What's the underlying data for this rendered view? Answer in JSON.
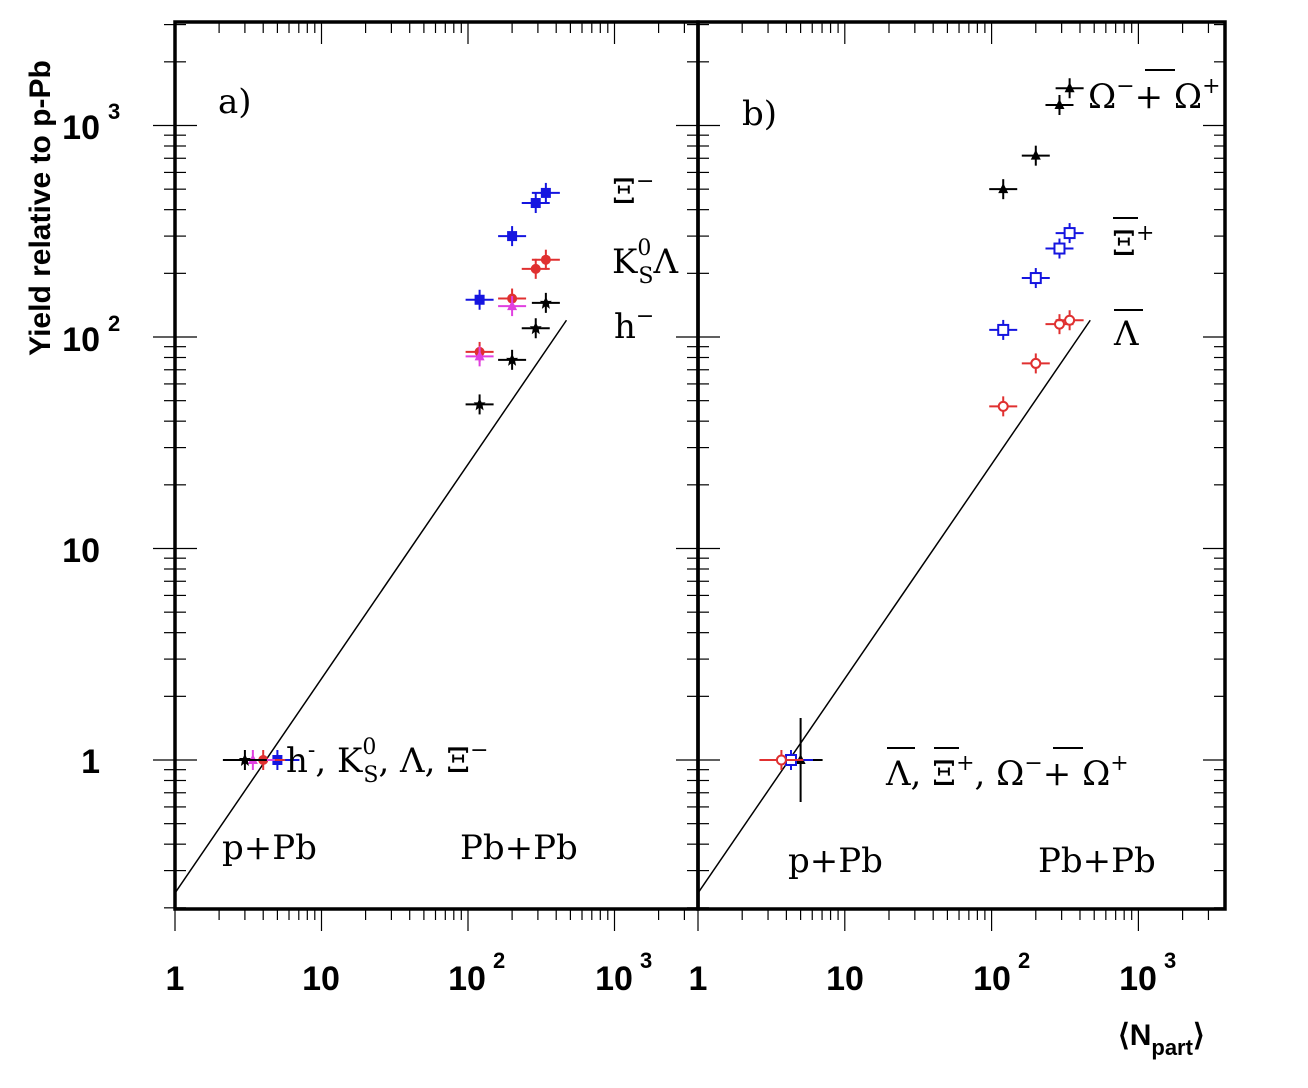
{
  "chart_data": [
    {
      "panel_label": "a)",
      "type": "scatter",
      "x_scale": "log",
      "y_scale": "log",
      "xlim": [
        1,
        3000
      ],
      "ylim": [
        0.2,
        3000
      ],
      "x_ticks": [
        "1",
        "10",
        "10^2",
        "10^3"
      ],
      "y_ticks": [
        "1",
        "10",
        "10^2",
        "10^3"
      ],
      "ylabel": "Yield relative to p-Pb",
      "region_labels": [
        "p+Pb",
        "Pb+Pb"
      ],
      "reference_line": {
        "x": [
          1,
          470
        ],
        "y": [
          0.235,
          120
        ]
      },
      "series": [
        {
          "name": "Ξ⁻",
          "color": "#1515e0",
          "marker": "filled-square",
          "points": [
            {
              "x": 5.0,
              "y": 1.0
            },
            {
              "x": 120,
              "y": 150
            },
            {
              "x": 200,
              "y": 300
            },
            {
              "x": 290,
              "y": 430
            },
            {
              "x": 340,
              "y": 480
            }
          ]
        },
        {
          "name": "K⁰S Λ",
          "color": "#e03030",
          "marker": "filled-circle",
          "points": [
            {
              "x": 4.0,
              "y": 1.0
            },
            {
              "x": 120,
              "y": 85
            },
            {
              "x": 200,
              "y": 152
            },
            {
              "x": 290,
              "y": 210
            },
            {
              "x": 340,
              "y": 232
            }
          ]
        },
        {
          "name": "Λ",
          "color": "#e040e0",
          "marker": "filled-triangle",
          "points": [
            {
              "x": 3.4,
              "y": 1.0
            },
            {
              "x": 120,
              "y": 81
            },
            {
              "x": 200,
              "y": 140
            }
          ]
        },
        {
          "name": "h⁻",
          "color": "#000000",
          "marker": "star",
          "points": [
            {
              "x": 3.0,
              "y": 1.0
            },
            {
              "x": 120,
              "y": 48
            },
            {
              "x": 200,
              "y": 78
            },
            {
              "x": 290,
              "y": 110
            },
            {
              "x": 340,
              "y": 145
            }
          ]
        }
      ],
      "legend_labels": [
        "Ξ⁻",
        "K⁰S Λ",
        "h⁻"
      ],
      "ref_label": "h⁻, K⁰S, Λ, Ξ⁻"
    },
    {
      "panel_label": "b)",
      "type": "scatter",
      "x_scale": "log",
      "y_scale": "log",
      "xlim": [
        1,
        3000
      ],
      "ylim": [
        0.2,
        3000
      ],
      "x_ticks": [
        "1",
        "10",
        "10^2",
        "10^3"
      ],
      "xlabel": "⟨N_part⟩",
      "region_labels": [
        "p+Pb",
        "Pb+Pb"
      ],
      "reference_line": {
        "x": [
          1,
          470
        ],
        "y": [
          0.235,
          120
        ]
      },
      "series": [
        {
          "name": "Ω⁻ + Ω̄⁺",
          "color": "#000000",
          "marker": "filled-triangle",
          "points": [
            {
              "x": 5.0,
              "y": 1.0
            },
            {
              "x": 120,
              "y": 500
            },
            {
              "x": 200,
              "y": 720
            },
            {
              "x": 290,
              "y": 1250
            },
            {
              "x": 340,
              "y": 1500
            }
          ]
        },
        {
          "name": "Ξ̄⁺",
          "color": "#1515e0",
          "marker": "open-square",
          "points": [
            {
              "x": 4.3,
              "y": 1.0
            },
            {
              "x": 120,
              "y": 108
            },
            {
              "x": 200,
              "y": 190
            },
            {
              "x": 290,
              "y": 262
            },
            {
              "x": 340,
              "y": 310
            }
          ]
        },
        {
          "name": "Λ̄",
          "color": "#e03030",
          "marker": "open-circle",
          "points": [
            {
              "x": 3.7,
              "y": 1.0
            },
            {
              "x": 120,
              "y": 47
            },
            {
              "x": 200,
              "y": 75
            },
            {
              "x": 290,
              "y": 115
            },
            {
              "x": 340,
              "y": 120
            }
          ]
        }
      ],
      "legend_labels": [
        "Ω⁻ + Ω̄⁺",
        "Ξ̄⁺",
        "Λ̄"
      ],
      "ref_label": "Λ̄, Ξ̄⁺, Ω⁻ + Ω̄⁺"
    }
  ]
}
